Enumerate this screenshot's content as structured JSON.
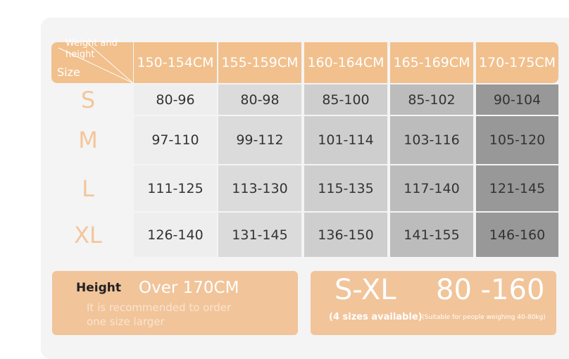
{
  "table": {
    "corner": {
      "top": [
        "Weight and",
        "height"
      ],
      "bottom": "Size"
    },
    "columns": [
      "150-154CM",
      "155-159CM",
      "160-164CM",
      "165-169CM",
      "170-175CM"
    ],
    "rows": [
      {
        "size": "S",
        "cells": [
          "80-96",
          "80-98",
          "85-100",
          "85-102",
          "90-104"
        ]
      },
      {
        "size": "M",
        "cells": [
          "97-110",
          "99-112",
          "101-114",
          "103-116",
          "105-120"
        ]
      },
      {
        "size": "L",
        "cells": [
          "111-125",
          "113-130",
          "115-135",
          "117-140",
          "121-145"
        ]
      },
      {
        "size": "XL",
        "cells": [
          "126-140",
          "131-145",
          "136-150",
          "141-155",
          "146-160"
        ]
      }
    ]
  },
  "notes": {
    "left": {
      "label": "Height",
      "value": "Over 170CM",
      "text": [
        "It is recommended to order",
        "one size larger"
      ]
    },
    "right": {
      "range": "S-XL",
      "range_note": "(4 sizes available)",
      "weight": "80 -160",
      "weight_note": "(Suitable for people weighing 40-80kg)"
    }
  }
}
